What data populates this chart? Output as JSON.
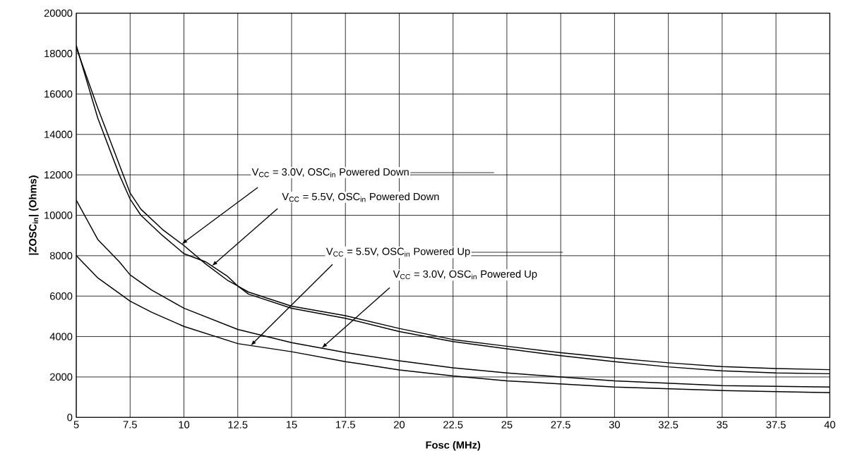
{
  "chart_data": {
    "type": "line",
    "xlabel": "Fosc (MHz)",
    "ylabel": "|ZOSC$_{in}$| (Ohms)",
    "xlim": [
      5,
      40
    ],
    "xticks": [
      5,
      7.5,
      10,
      12.5,
      15,
      17.5,
      20,
      22.5,
      25,
      27.5,
      30,
      32.5,
      35,
      37.5,
      40
    ],
    "ylim": [
      0,
      20000
    ],
    "yticks": [
      0,
      2000,
      4000,
      6000,
      8000,
      10000,
      12000,
      14000,
      16000,
      18000,
      20000
    ],
    "grid": true,
    "marker": "none",
    "line_style": "solid",
    "annotations": [
      {
        "text": "V$_{CC}$ = 3.0V, OSC$_{in}$ Powered Down",
        "x": 9.9,
        "y": 8580
      },
      {
        "text": "V$_{CC}$ = 5.5V, OSC$_{in}$ Powered Down",
        "x": 11.3,
        "y": 7490
      },
      {
        "text": "V$_{CC}$ = 5.5V, OSC$_{in}$ Powered Up",
        "x": 13.1,
        "y": 3550
      },
      {
        "text": "V$_{CC}$ = 3.0V, OSC$_{in}$ Powered Up",
        "x": 16.4,
        "y": 3430
      }
    ],
    "series": [
      {
        "color": "#000000",
        "x": [
          5,
          6,
          7,
          7.5,
          8,
          9,
          10,
          11,
          12,
          12.5,
          13,
          15,
          17.5,
          20,
          22.5,
          25,
          27.5,
          30,
          32.5,
          35,
          37.5,
          40
        ],
        "values": [
          18300,
          15300,
          12500,
          11100,
          10300,
          9300,
          8500,
          7600,
          6800,
          6500,
          6200,
          5500,
          5030,
          4400,
          3850,
          3520,
          3200,
          2930,
          2700,
          2510,
          2420,
          2360
        ]
      },
      {
        "color": "#000000",
        "x": [
          5,
          6,
          7,
          7.5,
          8,
          9,
          10,
          11,
          12,
          12.5,
          13,
          15,
          17.5,
          20,
          22.5,
          25,
          27.5,
          30,
          32.5,
          35,
          37.5,
          40
        ],
        "values": [
          18400,
          14800,
          12000,
          10800,
          10000,
          9000,
          8100,
          7700,
          7000,
          6500,
          6100,
          5400,
          4900,
          4250,
          3750,
          3390,
          3050,
          2760,
          2500,
          2300,
          2200,
          2160
        ]
      },
      {
        "color": "#000000",
        "x": [
          5,
          6,
          7,
          7.5,
          8.5,
          10,
          12.5,
          15,
          17.5,
          20,
          22.5,
          25,
          27.5,
          30,
          35,
          40
        ],
        "values": [
          10750,
          8800,
          7700,
          7050,
          6300,
          5400,
          4350,
          3700,
          3210,
          2800,
          2450,
          2200,
          2000,
          1810,
          1570,
          1500
        ]
      },
      {
        "color": "#000000",
        "x": [
          5,
          6,
          7.5,
          8.5,
          10,
          12.5,
          15,
          17.5,
          20,
          22.5,
          25,
          30,
          35,
          40
        ],
        "values": [
          8000,
          6900,
          5750,
          5200,
          4500,
          3650,
          3250,
          2760,
          2350,
          2050,
          1810,
          1500,
          1330,
          1220
        ]
      }
    ]
  }
}
